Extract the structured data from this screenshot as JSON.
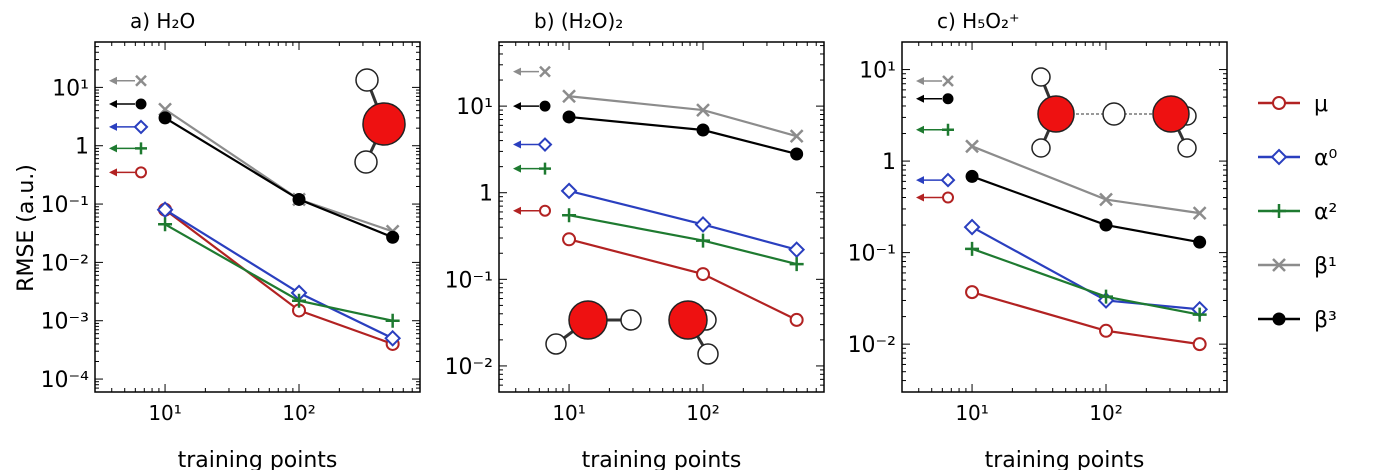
{
  "ylabel": "RMSE (a.u.)",
  "colors": {
    "mu": "#b22222",
    "alpha0": "#2a3fbf",
    "alpha2": "#1e7a30",
    "beta1": "#8c8c8c",
    "beta3": "#000000",
    "atom_o": "#ee1111"
  },
  "legend": [
    {
      "key": "mu",
      "label": "μ",
      "marker": "circle-open"
    },
    {
      "key": "alpha0",
      "label": "α⁰",
      "marker": "diamond-open"
    },
    {
      "key": "alpha2",
      "label": "α²",
      "marker": "plus"
    },
    {
      "key": "beta1",
      "label": "β¹",
      "marker": "x"
    },
    {
      "key": "beta3",
      "label": "β³",
      "marker": "circle-filled"
    }
  ],
  "chart_data": [
    {
      "type": "line",
      "panel": "a",
      "title": "a) H₂O",
      "xlabel": "training points",
      "xscale": "log",
      "yscale": "log",
      "xlim": [
        3,
        800
      ],
      "ylim": [
        6e-05,
        60
      ],
      "xticks": [
        {
          "v": 10,
          "label": "10¹"
        },
        {
          "v": 100,
          "label": "10²"
        }
      ],
      "yticks": [
        {
          "v": 10,
          "label": "10¹"
        },
        {
          "v": 1,
          "label": "1"
        },
        {
          "v": 0.1,
          "label": "10⁻¹"
        },
        {
          "v": 0.01,
          "label": "10⁻²"
        },
        {
          "v": 0.001,
          "label": "10⁻³"
        },
        {
          "v": 0.0001,
          "label": "10⁻⁴"
        }
      ],
      "x": [
        10,
        100,
        500
      ],
      "series": [
        {
          "key": "mu",
          "values": [
            0.08,
            0.0015,
            0.0004
          ],
          "marker": "circle-open"
        },
        {
          "key": "alpha0",
          "values": [
            0.08,
            0.003,
            0.0005
          ],
          "marker": "diamond-open"
        },
        {
          "key": "alpha2",
          "values": [
            0.045,
            0.0022,
            0.001
          ],
          "marker": "plus"
        },
        {
          "key": "beta1",
          "values": [
            4.2,
            0.12,
            0.034
          ],
          "marker": "x"
        },
        {
          "key": "beta3",
          "values": [
            3.0,
            0.12,
            0.027
          ],
          "marker": "circle-filled"
        }
      ],
      "baselines": [
        {
          "key": "beta1",
          "value": 13,
          "marker": "x"
        },
        {
          "key": "beta3",
          "value": 5.2,
          "marker": "circle-filled"
        },
        {
          "key": "alpha0",
          "value": 2.1,
          "marker": "diamond-open"
        },
        {
          "key": "alpha2",
          "value": 0.9,
          "marker": "plus"
        },
        {
          "key": "mu",
          "value": 0.35,
          "marker": "circle-open"
        }
      ],
      "molecule": "H2O"
    },
    {
      "type": "line",
      "panel": "b",
      "title": "b) (H₂O)₂",
      "xlabel": "training points",
      "xscale": "log",
      "yscale": "log",
      "xlim": [
        3,
        800
      ],
      "ylim": [
        0.005,
        55
      ],
      "xticks": [
        {
          "v": 10,
          "label": "10¹"
        },
        {
          "v": 100,
          "label": "10²"
        }
      ],
      "yticks": [
        {
          "v": 10,
          "label": "10¹"
        },
        {
          "v": 1,
          "label": "1"
        },
        {
          "v": 0.1,
          "label": "10⁻¹"
        },
        {
          "v": 0.01,
          "label": "10⁻²"
        }
      ],
      "x": [
        10,
        100,
        500
      ],
      "series": [
        {
          "key": "mu",
          "values": [
            0.29,
            0.115,
            0.034
          ],
          "marker": "circle-open"
        },
        {
          "key": "alpha0",
          "values": [
            1.05,
            0.43,
            0.22
          ],
          "marker": "diamond-open"
        },
        {
          "key": "alpha2",
          "values": [
            0.55,
            0.28,
            0.15
          ],
          "marker": "plus"
        },
        {
          "key": "beta1",
          "values": [
            13,
            9,
            4.5
          ],
          "marker": "x"
        },
        {
          "key": "beta3",
          "values": [
            7.5,
            5.3,
            2.8
          ],
          "marker": "circle-filled"
        }
      ],
      "baselines": [
        {
          "key": "beta1",
          "value": 25,
          "marker": "x"
        },
        {
          "key": "beta3",
          "value": 10,
          "marker": "circle-filled"
        },
        {
          "key": "alpha0",
          "value": 3.6,
          "marker": "diamond-open"
        },
        {
          "key": "alpha2",
          "value": 1.9,
          "marker": "plus"
        },
        {
          "key": "mu",
          "value": 0.62,
          "marker": "circle-open"
        }
      ],
      "molecule": "H2O2"
    },
    {
      "type": "line",
      "panel": "c",
      "title": "c) H₅O₂⁺",
      "xlabel": "training points",
      "xscale": "log",
      "yscale": "log",
      "xlim": [
        3,
        800
      ],
      "ylim": [
        0.003,
        20
      ],
      "xticks": [
        {
          "v": 10,
          "label": "10¹"
        },
        {
          "v": 100,
          "label": "10²"
        }
      ],
      "yticks": [
        {
          "v": 10,
          "label": "10¹"
        },
        {
          "v": 1,
          "label": "1"
        },
        {
          "v": 0.1,
          "label": "10⁻¹"
        },
        {
          "v": 0.01,
          "label": "10⁻²"
        }
      ],
      "x": [
        10,
        100,
        500
      ],
      "series": [
        {
          "key": "mu",
          "values": [
            0.037,
            0.014,
            0.01
          ],
          "marker": "circle-open"
        },
        {
          "key": "alpha0",
          "values": [
            0.19,
            0.03,
            0.024
          ],
          "marker": "diamond-open"
        },
        {
          "key": "alpha2",
          "values": [
            0.11,
            0.033,
            0.021
          ],
          "marker": "plus"
        },
        {
          "key": "beta1",
          "values": [
            1.45,
            0.38,
            0.27
          ],
          "marker": "x"
        },
        {
          "key": "beta3",
          "values": [
            0.68,
            0.2,
            0.13
          ],
          "marker": "circle-filled"
        }
      ],
      "baselines": [
        {
          "key": "beta1",
          "value": 7.5,
          "marker": "x"
        },
        {
          "key": "beta3",
          "value": 4.8,
          "marker": "circle-filled"
        },
        {
          "key": "alpha2",
          "value": 2.2,
          "marker": "plus"
        },
        {
          "key": "alpha0",
          "value": 0.62,
          "marker": "diamond-open"
        },
        {
          "key": "mu",
          "value": 0.4,
          "marker": "circle-open"
        }
      ],
      "molecule": "H5O2+"
    }
  ]
}
